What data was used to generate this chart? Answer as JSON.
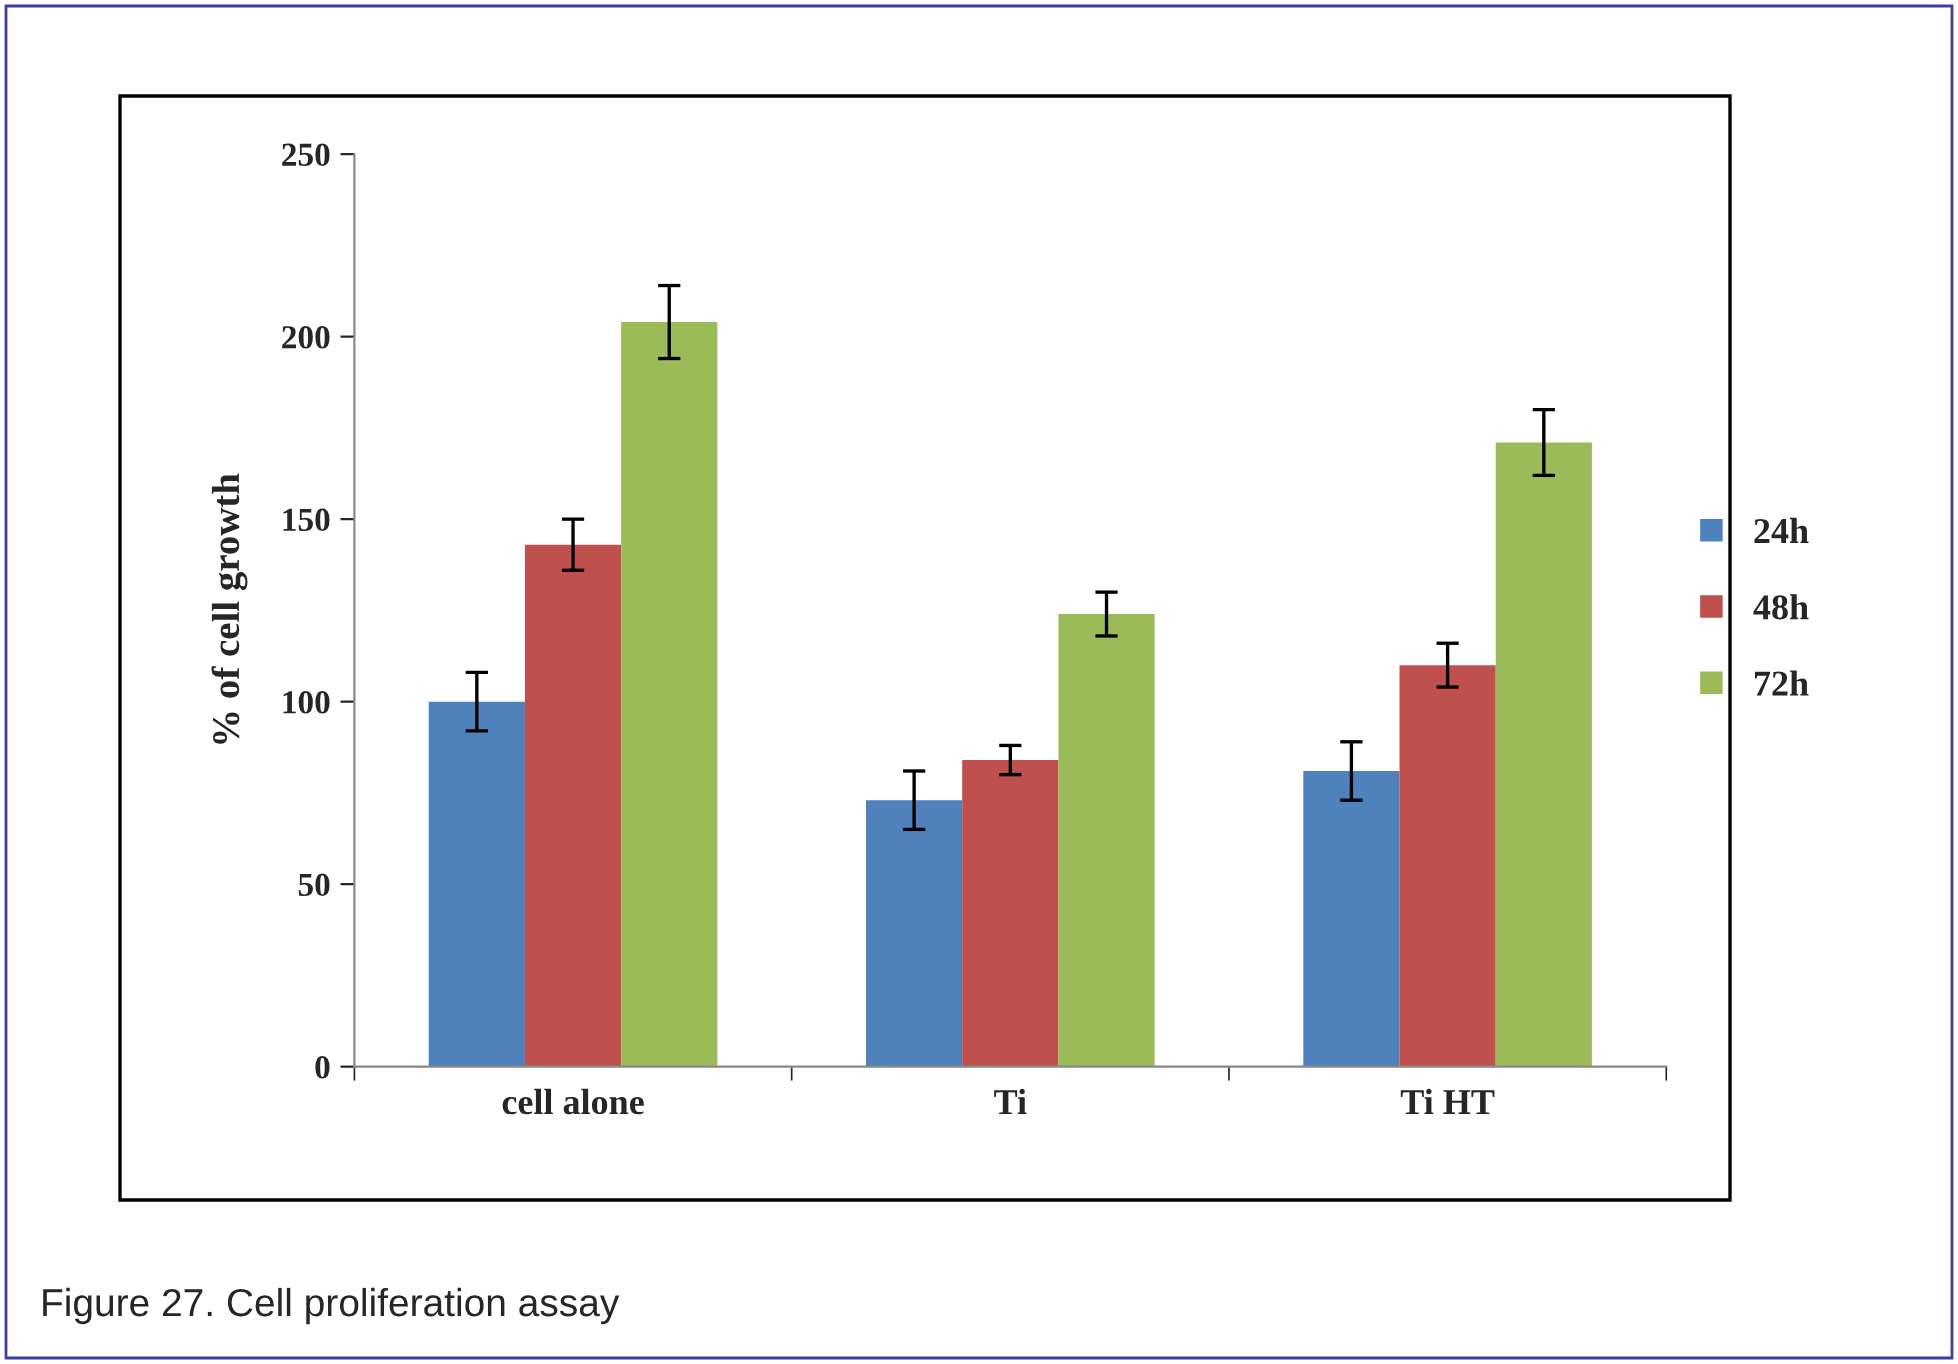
{
  "chart_data": {
    "type": "bar",
    "ylabel": "% of cell growth",
    "categories": [
      "cell alone",
      "Ti",
      "Ti HT"
    ],
    "series": [
      {
        "name": "24h",
        "color": "#4f81bd",
        "values": [
          100,
          73,
          81
        ],
        "errors": [
          8,
          8,
          8
        ]
      },
      {
        "name": "48h",
        "color": "#c0504d",
        "values": [
          143,
          84,
          110
        ],
        "errors": [
          7,
          4,
          6
        ]
      },
      {
        "name": "72h",
        "color": "#9bbb59",
        "values": [
          204,
          124,
          171
        ],
        "errors": [
          10,
          6,
          9
        ]
      }
    ],
    "ylim": [
      0,
      250
    ],
    "yticks": [
      0,
      50,
      100,
      150,
      200,
      250
    ],
    "grid": false,
    "legend": "right",
    "annotations": [
      "Figure 27. Cell proliferation assay"
    ]
  }
}
